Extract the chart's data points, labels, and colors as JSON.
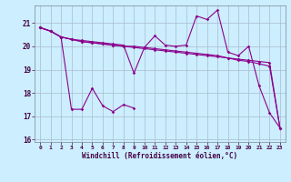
{
  "x": [
    0,
    1,
    2,
    3,
    4,
    5,
    6,
    7,
    8,
    9,
    10,
    11,
    12,
    13,
    14,
    15,
    16,
    17,
    18,
    19,
    20,
    21,
    22,
    23
  ],
  "line1": [
    20.8,
    20.65,
    20.4,
    17.3,
    17.3,
    18.2,
    17.45,
    17.2,
    17.5,
    17.35,
    null,
    null,
    null,
    null,
    null,
    null,
    null,
    null,
    null,
    null,
    null,
    null,
    null,
    null
  ],
  "line2": [
    20.8,
    20.65,
    20.4,
    20.3,
    20.25,
    20.2,
    20.15,
    20.1,
    20.05,
    18.85,
    19.95,
    20.45,
    20.05,
    20.0,
    20.05,
    21.3,
    21.15,
    21.55,
    19.75,
    19.6,
    20.0,
    18.3,
    17.15,
    16.5
  ],
  "line3": [
    20.8,
    20.65,
    20.4,
    20.3,
    20.2,
    20.15,
    20.1,
    20.05,
    20.0,
    19.95,
    19.9,
    19.85,
    19.8,
    19.75,
    19.7,
    19.65,
    19.6,
    19.55,
    19.5,
    19.45,
    19.4,
    19.35,
    19.3,
    16.5
  ],
  "line4": [
    20.8,
    20.65,
    20.4,
    20.3,
    20.2,
    20.15,
    20.1,
    20.05,
    20.0,
    20.0,
    19.95,
    19.9,
    19.85,
    19.8,
    19.75,
    19.7,
    19.65,
    19.6,
    19.5,
    19.4,
    19.35,
    19.25,
    19.15,
    16.5
  ],
  "line_color": "#8b008b",
  "bg_color": "#cceeff",
  "grid_color": "#aabbcc",
  "xlabel": "Windchill (Refroidissement éolien,°C)",
  "ylim": [
    15.9,
    21.75
  ],
  "xlim": [
    -0.5,
    23.5
  ],
  "yticks": [
    16,
    17,
    18,
    19,
    20,
    21
  ],
  "xticks": [
    0,
    1,
    2,
    3,
    4,
    5,
    6,
    7,
    8,
    9,
    10,
    11,
    12,
    13,
    14,
    15,
    16,
    17,
    18,
    19,
    20,
    21,
    22,
    23
  ]
}
